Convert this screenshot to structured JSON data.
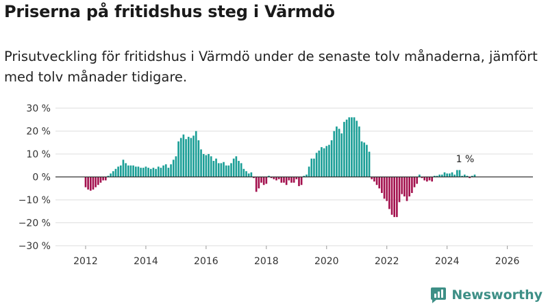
{
  "header": {
    "title": "Priserna på fritidshus steg i Värmdö",
    "subtitle": "Prisutveckling för fritidshus i Värmdö under de senaste tolv månaderna, jämfört med tolv månader tidigare."
  },
  "brand": {
    "name": "Newsworthy"
  },
  "colors": {
    "positive": "#1a9e96",
    "negative": "#a3114e",
    "grid": "#dedede",
    "zero_line": "#333333"
  },
  "chart_data": {
    "type": "bar",
    "title": "Priserna på fritidshus steg i Värmdö",
    "xlabel": "",
    "ylabel": "",
    "x_start": 2012.0,
    "x_step": 0.0833333,
    "xlim": [
      2011.0,
      2026.85
    ],
    "ylim": [
      -30,
      30
    ],
    "y_ticks": [
      30,
      20,
      10,
      0,
      -10,
      -20,
      -30
    ],
    "y_tick_labels": [
      "30 %",
      "20 %",
      "10 %",
      "0 %",
      "−10 %",
      "−20 %",
      "−30 %"
    ],
    "x_ticks": [
      2012,
      2014,
      2016,
      2018,
      2020,
      2022,
      2024,
      2026
    ],
    "x_tick_labels": [
      "2012",
      "2014",
      "2016",
      "2018",
      "2020",
      "2022",
      "2024",
      "2026"
    ],
    "last_value_label": "1 %",
    "values": [
      -4.5,
      -5.5,
      -6.0,
      -5.5,
      -4.5,
      -3.5,
      -2.5,
      -1.5,
      -1.5,
      0.5,
      1.5,
      2.5,
      3.5,
      4.5,
      5.0,
      7.5,
      6.0,
      5.0,
      5.0,
      5.0,
      4.5,
      4.5,
      4.0,
      4.0,
      4.5,
      4.0,
      3.5,
      4.0,
      3.5,
      4.5,
      4.0,
      5.0,
      5.5,
      4.0,
      5.5,
      7.5,
      9.0,
      15.5,
      17.0,
      18.5,
      16.5,
      17.5,
      17.0,
      18.0,
      20.0,
      16.0,
      12.0,
      10.0,
      9.5,
      10.0,
      9.0,
      7.0,
      8.0,
      6.0,
      6.0,
      6.5,
      5.0,
      5.0,
      6.0,
      8.0,
      9.0,
      7.0,
      6.0,
      3.5,
      2.5,
      1.5,
      2.0,
      -0.5,
      -6.5,
      -5.0,
      -2.5,
      -3.5,
      -3.0,
      0.5,
      -0.5,
      -1.0,
      -1.5,
      -1.0,
      -2.5,
      -2.5,
      -3.5,
      -1.5,
      -2.5,
      -2.5,
      -1.0,
      -4.0,
      -3.5,
      0.5,
      1.0,
      4.5,
      8.0,
      8.0,
      10.5,
      11.5,
      13.0,
      12.5,
      13.5,
      14.0,
      16.0,
      20.0,
      22.0,
      21.0,
      19.0,
      24.0,
      25.0,
      26.0,
      26.0,
      26.0,
      24.5,
      22.0,
      15.5,
      15.0,
      14.0,
      11.0,
      -1.0,
      -2.0,
      -3.5,
      -5.0,
      -7.0,
      -9.5,
      -10.5,
      -14.0,
      -16.5,
      -17.5,
      -17.5,
      -11.0,
      -7.5,
      -8.5,
      -10.5,
      -8.5,
      -7.0,
      -4.5,
      -3.0,
      1.0,
      -0.5,
      -1.5,
      -2.0,
      -1.5,
      -2.0,
      0.5,
      0.5,
      1.0,
      1.0,
      2.0,
      1.5,
      1.5,
      2.0,
      1.0,
      3.0,
      3.0,
      0.5,
      1.0,
      0.5,
      -0.5,
      0.5,
      1.0
    ]
  }
}
